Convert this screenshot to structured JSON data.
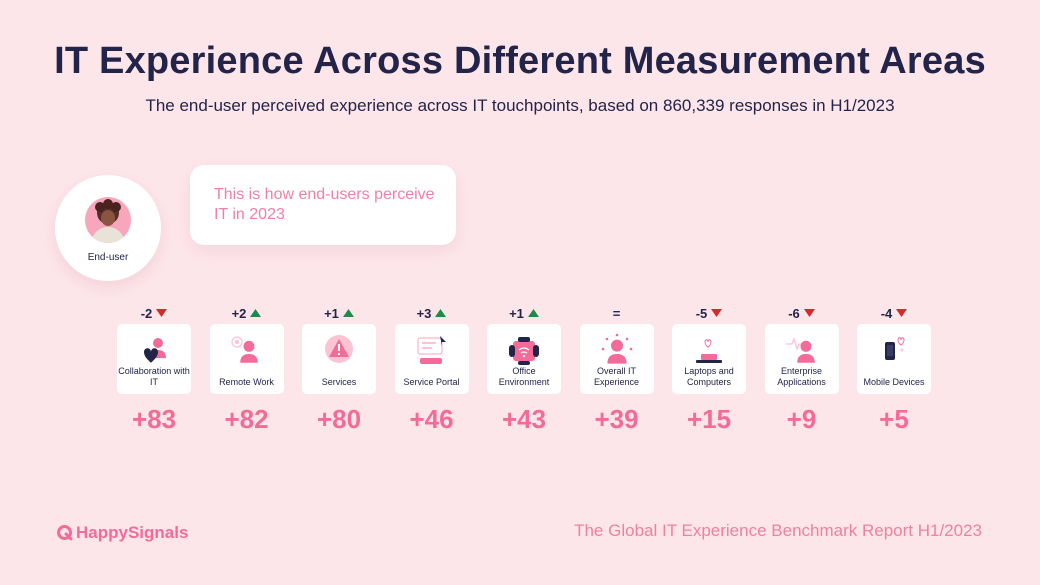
{
  "header": {
    "title": "IT Experience Across Different Measurement Areas",
    "subtitle": "The end-user perceived experience across IT touchpoints, based on 860,339 responses in H1/2023"
  },
  "persona": {
    "label": "End-user",
    "bubble_text": "This is how end-users perceive IT in 2023"
  },
  "colors": {
    "background": "#fde6ea",
    "accent": "#f36b98",
    "up": "#1f8a4c",
    "down": "#d42a2a",
    "text": "#22244a"
  },
  "chart_data": {
    "type": "bar",
    "categories": [
      "Collaboration with IT",
      "Remote Work",
      "Services",
      "Service Portal",
      "Office Environment",
      "Overall IT Experience",
      "Laptops and Computers",
      "Enterprise Applications",
      "Mobile Devices"
    ],
    "values": [
      83,
      82,
      80,
      46,
      43,
      39,
      15,
      9,
      5
    ],
    "score_labels": [
      "+83",
      "+82",
      "+80",
      "+46",
      "+43",
      "+39",
      "+15",
      "+9",
      "+5"
    ],
    "changes": [
      "-2",
      "+2",
      "+1",
      "+3",
      "+1",
      "=",
      "-5",
      "-6",
      "-4"
    ],
    "change_direction": [
      "down",
      "up",
      "up",
      "up",
      "up",
      "none",
      "down",
      "down",
      "down"
    ],
    "icons": [
      "heart-user-icon",
      "remote-work-icon",
      "warning-icon",
      "service-portal-icon",
      "office-icon",
      "overall-experience-icon",
      "laptop-icon",
      "enterprise-app-icon",
      "mobile-device-icon"
    ]
  },
  "footer": {
    "brand": "HappySignals",
    "report": "The Global IT Experience Benchmark Report H1/2023"
  }
}
